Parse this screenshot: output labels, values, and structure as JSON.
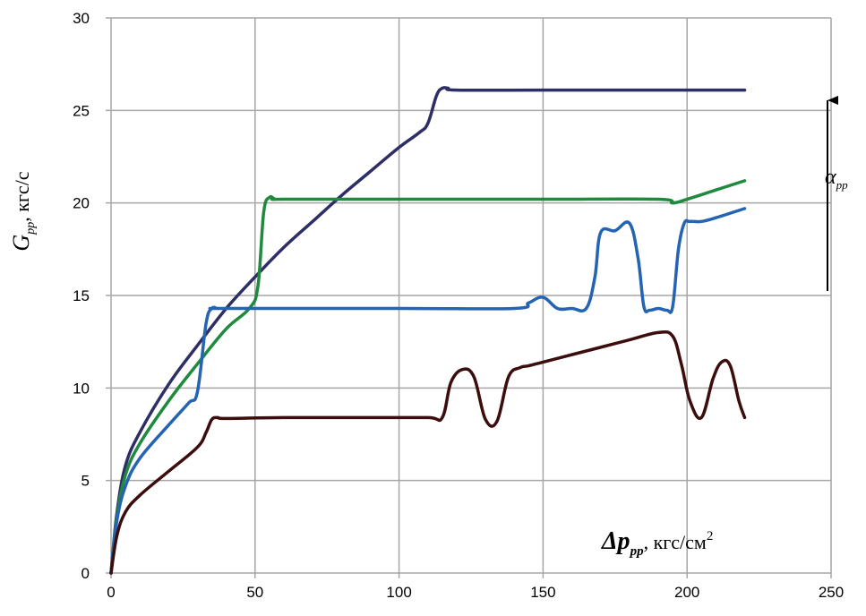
{
  "chart_data": {
    "type": "line",
    "title": "",
    "xlabel": {
      "symbol": "Δp",
      "subscript": "pp",
      "unit": ", кгс/см",
      "unit_sup": "2"
    },
    "ylabel": {
      "symbol": "G",
      "subscript": "pp",
      "unit": ", кгс/с"
    },
    "annotation": {
      "symbol": "α",
      "subscript": "pp"
    },
    "xlim": [
      0,
      250
    ],
    "ylim": [
      0,
      30
    ],
    "xticks": [
      "0",
      "50",
      "100",
      "150",
      "200",
      "250"
    ],
    "yticks": [
      "0",
      "5",
      "10",
      "15",
      "20",
      "25",
      "30"
    ],
    "grid": true,
    "series": [
      {
        "color": "#2e2e66",
        "x": [
          0,
          2,
          5,
          10,
          20,
          30,
          40,
          50,
          60,
          70,
          80,
          90,
          100,
          107,
          110,
          113,
          115,
          117,
          120,
          150,
          200,
          220
        ],
        "y": [
          0,
          3.2,
          5.8,
          7.6,
          10.2,
          12.3,
          14.3,
          16.0,
          17.6,
          19.0,
          20.4,
          21.7,
          23.0,
          23.8,
          24.3,
          25.8,
          26.2,
          26.2,
          26.1,
          26.1,
          26.1,
          26.1
        ]
      },
      {
        "color": "#1f8a3e",
        "x": [
          0,
          2,
          5,
          10,
          20,
          30,
          40,
          48,
          51,
          53,
          55,
          57,
          60,
          100,
          150,
          190,
          195,
          200,
          210,
          220
        ],
        "y": [
          0,
          3.0,
          5.3,
          7.0,
          9.3,
          11.3,
          13.2,
          14.3,
          15.5,
          19.5,
          20.3,
          20.2,
          20.2,
          20.2,
          20.2,
          20.2,
          20.0,
          20.2,
          20.7,
          21.2
        ]
      },
      {
        "color": "#2563b3",
        "x": [
          0,
          2,
          5,
          10,
          20,
          27,
          30,
          33,
          35,
          37,
          40,
          100,
          140,
          145,
          150,
          155,
          160,
          165,
          168,
          170,
          175,
          180,
          183,
          185,
          187,
          190,
          193,
          195,
          197,
          199,
          201,
          205,
          210,
          220
        ],
        "y": [
          0,
          2.8,
          4.7,
          6.2,
          8.0,
          9.2,
          9.8,
          13.5,
          14.3,
          14.3,
          14.3,
          14.3,
          14.3,
          14.6,
          14.9,
          14.3,
          14.3,
          14.3,
          16.0,
          18.4,
          18.5,
          18.9,
          17.0,
          14.4,
          14.2,
          14.3,
          14.2,
          14.4,
          17.5,
          18.9,
          19.0,
          19.0,
          19.2,
          19.7
        ]
      },
      {
        "color": "#3b0d0d",
        "x": [
          0,
          2,
          5,
          10,
          20,
          30,
          33,
          35,
          37,
          40,
          60,
          90,
          110,
          115,
          118,
          122,
          126,
          130,
          134,
          138,
          142,
          145,
          150,
          160,
          170,
          180,
          190,
          195,
          198,
          201,
          205,
          209,
          212,
          215,
          218,
          220
        ],
        "y": [
          0,
          2.0,
          3.3,
          4.2,
          5.5,
          6.8,
          7.6,
          8.3,
          8.4,
          8.35,
          8.4,
          8.4,
          8.4,
          8.4,
          10.3,
          11.0,
          10.6,
          8.3,
          8.2,
          10.6,
          11.1,
          11.2,
          11.4,
          11.8,
          12.2,
          12.6,
          13.0,
          12.8,
          11.3,
          9.3,
          8.4,
          10.5,
          11.4,
          11.2,
          9.3,
          8.4
        ]
      }
    ]
  }
}
